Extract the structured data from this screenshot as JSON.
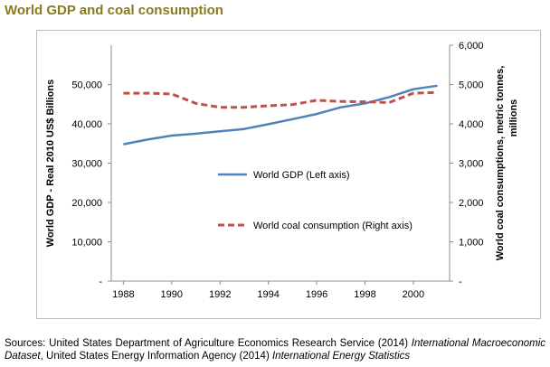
{
  "page_title": "World GDP and coal consumption",
  "chart_data": {
    "type": "line",
    "title": "World GDP and coal consumption",
    "xlabel": "",
    "ylabel_left": "World GDP - Real 2010 US$ Billions",
    "ylabel_right_line1": "World coal consumptions, metric tonnes,",
    "ylabel_right_line2": "millions",
    "x_ticks": [
      1988,
      1990,
      1992,
      1994,
      1996,
      1998,
      2000
    ],
    "x_tick_labels": [
      "1988",
      "1990",
      "1992",
      "1994",
      "1996",
      "1998",
      "2000"
    ],
    "xlim": [
      1987.5,
      2001.5
    ],
    "y_left_lim": [
      0,
      60000
    ],
    "y_left_ticks": [
      0,
      10000,
      20000,
      30000,
      40000,
      50000
    ],
    "y_left_tick_labels": [
      "-",
      "10,000",
      "20,000",
      "30,000",
      "40,000",
      "50,000"
    ],
    "y_right_lim": [
      0,
      6000
    ],
    "y_right_ticks": [
      0,
      1000,
      2000,
      3000,
      4000,
      5000,
      6000
    ],
    "y_right_tick_labels": [
      "-",
      "1,000",
      "2,000",
      "3,000",
      "4,000",
      "5,000",
      "6,000"
    ],
    "x": [
      1988,
      1989,
      1990,
      1991,
      1992,
      1993,
      1994,
      1995,
      1996,
      1997,
      1998,
      1999,
      2000,
      2001
    ],
    "series": [
      {
        "name": "World GDP (Left axis)",
        "axis": "left",
        "color": "#4f81bd",
        "style": "solid",
        "values": [
          34800,
          36000,
          37000,
          37500,
          38100,
          38700,
          39900,
          41200,
          42500,
          44200,
          45200,
          46800,
          48800,
          49700
        ]
      },
      {
        "name": "World coal consumption (Right axis)",
        "axis": "right",
        "color": "#c0504d",
        "style": "dashed",
        "values": [
          4780,
          4780,
          4760,
          4520,
          4420,
          4420,
          4460,
          4490,
          4600,
          4570,
          4560,
          4540,
          4780,
          4800
        ]
      }
    ],
    "legend_position": "center"
  },
  "sources": {
    "prefix": "Sources:  United  States  Department  of  Agriculture  Economics  Research  Service  (2014)  ",
    "title1": "International Macroeconomic Dataset",
    "middle": ", United States Energy Information Agency (2014) ",
    "title2": "International Energy Statistics"
  }
}
